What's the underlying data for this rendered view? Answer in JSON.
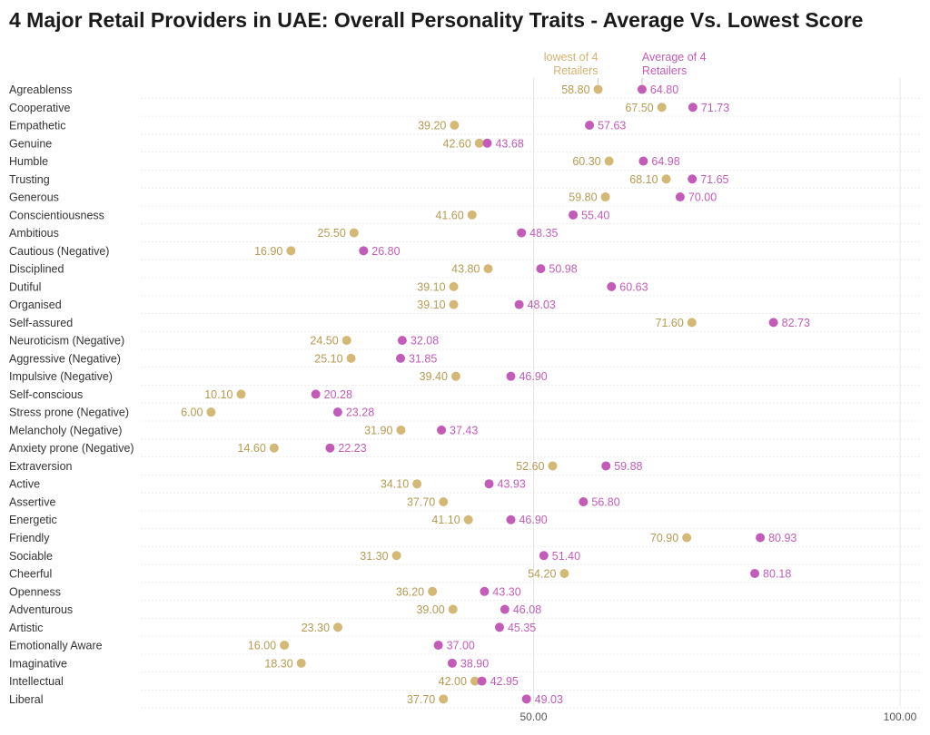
{
  "chart_data": {
    "type": "dumbbell",
    "title": "4 Major Retail Providers in UAE: Overall Personality Traits - Average Vs. Lowest Score",
    "xlim": [
      0,
      100
    ],
    "x_ticks": [
      {
        "value": 50,
        "label": "50.00"
      },
      {
        "value": 100,
        "label": "100.00"
      }
    ],
    "legend": {
      "low": [
        "lowest of 4",
        "Retailers"
      ],
      "avg": [
        "Average of 4",
        "Retailers"
      ]
    },
    "colors": {
      "low": "#d4b876",
      "avg": "#c35cb8",
      "low_text": "#b69a52",
      "avg_text": "#c35cb8"
    },
    "series": [
      {
        "name": "lowest of 4 Retailers",
        "key": "low"
      },
      {
        "name": "Average of 4 Retailers",
        "key": "avg"
      }
    ],
    "rows": [
      {
        "label": "Agreablenss",
        "low": 58.8,
        "avg": 64.8
      },
      {
        "label": "Cooperative",
        "low": 67.5,
        "avg": 71.73
      },
      {
        "label": "Empathetic",
        "low": 39.2,
        "avg": 57.63
      },
      {
        "label": "Genuine",
        "low": 42.6,
        "avg": 43.68
      },
      {
        "label": "Humble",
        "low": 60.3,
        "avg": 64.98
      },
      {
        "label": "Trusting",
        "low": 68.1,
        "avg": 71.65
      },
      {
        "label": "Generous",
        "low": 59.8,
        "avg": 70.0
      },
      {
        "label": "Conscientiousness",
        "low": 41.6,
        "avg": 55.4
      },
      {
        "label": "Ambitious",
        "low": 25.5,
        "avg": 48.35
      },
      {
        "label": "Cautious (Negative)",
        "low": 16.9,
        "avg": 26.8
      },
      {
        "label": "Disciplined",
        "low": 43.8,
        "avg": 50.98
      },
      {
        "label": "Dutiful",
        "low": 39.1,
        "avg": 60.63
      },
      {
        "label": "Organised",
        "low": 39.1,
        "avg": 48.03
      },
      {
        "label": "Self-assured",
        "low": 71.6,
        "avg": 82.73
      },
      {
        "label": "Neuroticism (Negative)",
        "low": 24.5,
        "avg": 32.08
      },
      {
        "label": "Aggressive (Negative)",
        "low": 25.1,
        "avg": 31.85
      },
      {
        "label": "Impulsive (Negative)",
        "low": 39.4,
        "avg": 46.9
      },
      {
        "label": "Self-conscious",
        "low": 10.1,
        "avg": 20.28
      },
      {
        "label": "Stress prone (Negative)",
        "low": 6.0,
        "avg": 23.28
      },
      {
        "label": "Melancholy (Negative)",
        "low": 31.9,
        "avg": 37.43
      },
      {
        "label": "Anxiety prone (Negative)",
        "low": 14.6,
        "avg": 22.23
      },
      {
        "label": "Extraversion",
        "low": 52.6,
        "avg": 59.88
      },
      {
        "label": "Active",
        "low": 34.1,
        "avg": 43.93
      },
      {
        "label": "Assertive",
        "low": 37.7,
        "avg": 56.8
      },
      {
        "label": "Energetic",
        "low": 41.1,
        "avg": 46.9
      },
      {
        "label": "Friendly",
        "low": 70.9,
        "avg": 80.93
      },
      {
        "label": "Sociable",
        "low": 31.3,
        "avg": 51.4
      },
      {
        "label": "Cheerful",
        "low": 54.2,
        "avg": 80.18
      },
      {
        "label": "Openness",
        "low": 36.2,
        "avg": 43.3
      },
      {
        "label": "Adventurous",
        "low": 39.0,
        "avg": 46.08
      },
      {
        "label": "Artistic",
        "low": 23.3,
        "avg": 45.35
      },
      {
        "label": "Emotionally Aware",
        "low": 16.0,
        "avg": 37.0
      },
      {
        "label": "Imaginative",
        "low": 18.3,
        "avg": 38.9
      },
      {
        "label": "Intellectual",
        "low": 42.0,
        "avg": 42.95
      },
      {
        "label": "Liberal",
        "low": 37.7,
        "avg": 49.03
      }
    ]
  }
}
